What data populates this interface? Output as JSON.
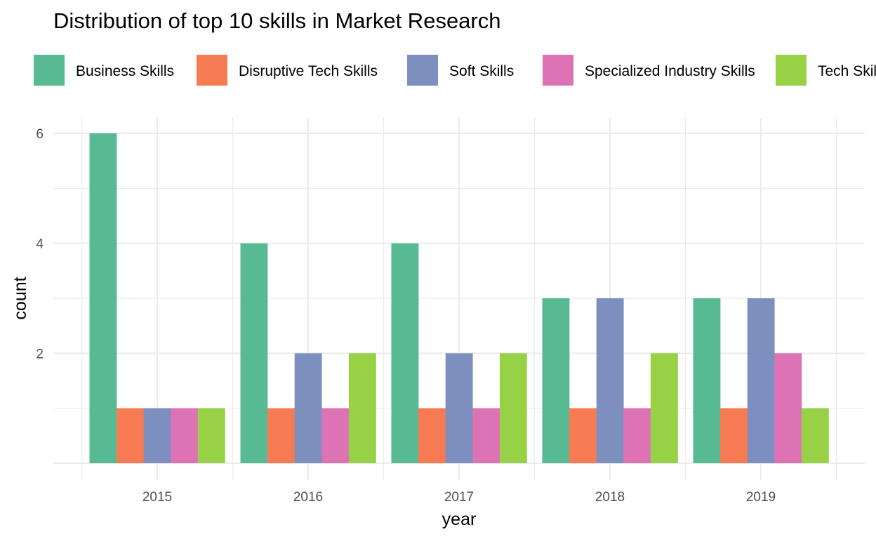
{
  "chart_data": {
    "type": "bar",
    "title": "Distribution of top 10 skills in Market Research",
    "xlabel": "year",
    "ylabel": "count",
    "categories": [
      "2015",
      "2016",
      "2017",
      "2018",
      "2019"
    ],
    "series": [
      {
        "name": "Business Skills",
        "color": "#57BA92",
        "values": [
          6,
          4,
          4,
          3,
          3
        ]
      },
      {
        "name": "Disruptive Tech Skills",
        "color": "#F77B52",
        "values": [
          1,
          1,
          1,
          1,
          1
        ]
      },
      {
        "name": "Soft Skills",
        "color": "#7D8FBF",
        "values": [
          1,
          2,
          2,
          3,
          3
        ]
      },
      {
        "name": "Specialized Industry Skills",
        "color": "#DD72B5",
        "values": [
          1,
          1,
          1,
          1,
          2
        ]
      },
      {
        "name": "Tech Skills",
        "color": "#97D246",
        "values": [
          1,
          2,
          2,
          2,
          1
        ]
      }
    ],
    "ylim": [
      0,
      6.4
    ],
    "yticks": [
      2,
      4,
      6
    ],
    "legend_position": "top",
    "grid": true
  }
}
